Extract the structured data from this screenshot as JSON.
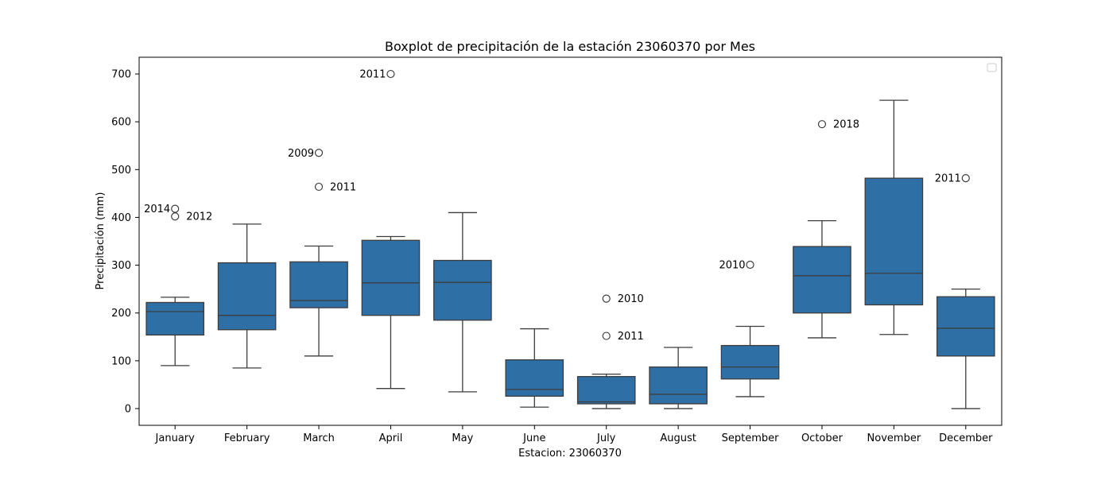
{
  "chart_data": {
    "type": "boxplot",
    "title": "Boxplot de precipitación de la estación 23060370 por Mes",
    "xlabel": "Estacion: 23060370",
    "ylabel": "Precipitación (mm)",
    "ylim": [
      -35,
      735
    ],
    "yticks": [
      0,
      100,
      200,
      300,
      400,
      500,
      600,
      700
    ],
    "grid": false,
    "legend": "top-right (empty)",
    "box_color": "#2e6fa5",
    "categories": [
      "January",
      "February",
      "March",
      "April",
      "May",
      "June",
      "July",
      "August",
      "September",
      "October",
      "November",
      "December"
    ],
    "boxes": [
      {
        "whisker_low": 90,
        "q1": 154,
        "median": 203,
        "q3": 222,
        "whisker_high": 233
      },
      {
        "whisker_low": 85,
        "q1": 165,
        "median": 195,
        "q3": 305,
        "whisker_high": 386
      },
      {
        "whisker_low": 110,
        "q1": 211,
        "median": 226,
        "q3": 307,
        "whisker_high": 340
      },
      {
        "whisker_low": 42,
        "q1": 195,
        "median": 263,
        "q3": 352,
        "whisker_high": 360
      },
      {
        "whisker_low": 35,
        "q1": 185,
        "median": 264,
        "q3": 310,
        "whisker_high": 410
      },
      {
        "whisker_low": 3,
        "q1": 26,
        "median": 40,
        "q3": 102,
        "whisker_high": 167
      },
      {
        "whisker_low": 0,
        "q1": 10,
        "median": 14,
        "q3": 67,
        "whisker_high": 72
      },
      {
        "whisker_low": 0,
        "q1": 10,
        "median": 30,
        "q3": 87,
        "whisker_high": 128
      },
      {
        "whisker_low": 25,
        "q1": 62,
        "median": 87,
        "q3": 132,
        "whisker_high": 172
      },
      {
        "whisker_low": 148,
        "q1": 200,
        "median": 278,
        "q3": 339,
        "whisker_high": 393
      },
      {
        "whisker_low": 155,
        "q1": 217,
        "median": 283,
        "q3": 482,
        "whisker_high": 645
      },
      {
        "whisker_low": 0,
        "q1": 110,
        "median": 168,
        "q3": 234,
        "whisker_high": 250
      }
    ],
    "outliers": [
      {
        "category": "January",
        "value": 418,
        "label": "2014",
        "label_side": "left"
      },
      {
        "category": "January",
        "value": 402,
        "label": "2012",
        "label_side": "right"
      },
      {
        "category": "March",
        "value": 535,
        "label": "2009",
        "label_side": "left"
      },
      {
        "category": "March",
        "value": 464,
        "label": "2011",
        "label_side": "right"
      },
      {
        "category": "April",
        "value": 700,
        "label": "2011",
        "label_side": "left"
      },
      {
        "category": "July",
        "value": 230,
        "label": "2010",
        "label_side": "right"
      },
      {
        "category": "July",
        "value": 152,
        "label": "2011",
        "label_side": "right"
      },
      {
        "category": "September",
        "value": 301,
        "label": "2010",
        "label_side": "left"
      },
      {
        "category": "October",
        "value": 595,
        "label": "2018",
        "label_side": "right"
      },
      {
        "category": "December",
        "value": 482,
        "label": "2011",
        "label_side": "left"
      }
    ]
  }
}
